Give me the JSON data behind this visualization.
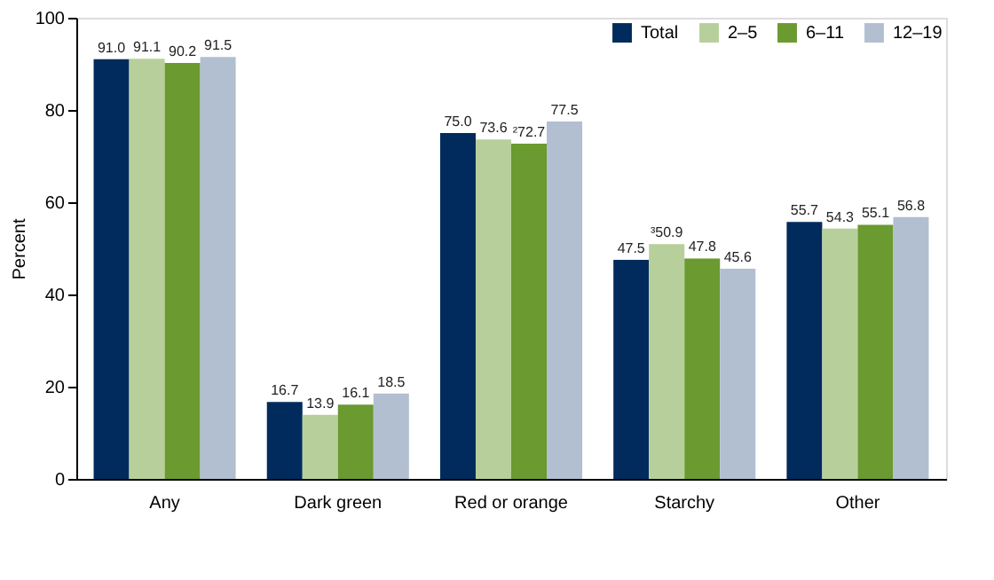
{
  "chart_data": {
    "type": "bar",
    "ylabel": "Percent",
    "categories": [
      "Any",
      "Dark green",
      "Red or orange",
      "Starchy",
      "Other"
    ],
    "series": [
      {
        "name": "Total",
        "color": "#002b5c",
        "values": [
          91.0,
          16.7,
          75.0,
          47.5,
          55.7
        ],
        "value_labels": [
          "91.0",
          "16.7",
          "75.0",
          "47.5",
          "55.7"
        ]
      },
      {
        "name": "2–5",
        "color": "#b7d09b",
        "values": [
          91.1,
          13.9,
          73.6,
          50.9,
          54.3
        ],
        "value_labels": [
          "91.1",
          "13.9",
          "73.6",
          "³50.9",
          "54.3"
        ]
      },
      {
        "name": "6–11",
        "color": "#6a9a30",
        "values": [
          90.2,
          16.1,
          72.7,
          47.8,
          55.1
        ],
        "value_labels": [
          "90.2",
          "16.1",
          "²72.7",
          "47.8",
          "55.1"
        ]
      },
      {
        "name": "12–19",
        "color": "#b2bfd0",
        "values": [
          91.5,
          18.5,
          77.5,
          45.6,
          56.8
        ],
        "value_labels": [
          "91.5",
          "18.5",
          "77.5",
          "45.6",
          "56.8"
        ]
      }
    ],
    "ylim": [
      0,
      100
    ],
    "yticks": [
      0,
      20,
      40,
      60,
      80,
      100
    ],
    "grid": false,
    "legend": "top right"
  }
}
